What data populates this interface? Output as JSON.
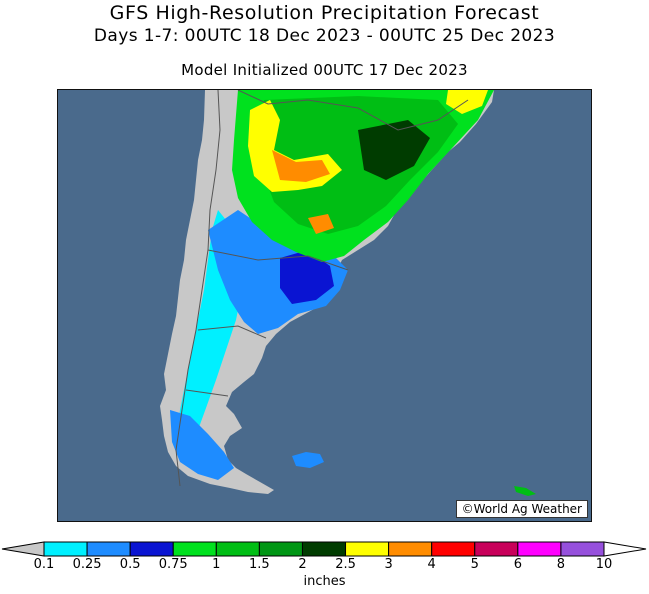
{
  "header": {
    "title": "GFS High-Resolution Precipitation Forecast",
    "period": "Days 1-7: 00UTC 18 Dec 2023 - 00UTC 25 Dec 2023",
    "init": "Model Initialized 00UTC 17 Dec 2023"
  },
  "map": {
    "region": "southern South America",
    "ocean_color": "#4a6a8c",
    "land_color": "#c8c8c8",
    "border_color": "#555555",
    "credit": "©World Ag Weather"
  },
  "legend": {
    "units": "inches",
    "ticks": [
      "0.1",
      "0.25",
      "0.5",
      "0.75",
      "1",
      "1.5",
      "2",
      "2.5",
      "3",
      "4",
      "5",
      "6",
      "8",
      "10"
    ],
    "colors": [
      "#00f0ff",
      "#1e8cff",
      "#0a14d2",
      "#00e11e",
      "#00be14",
      "#009614",
      "#003c00",
      "#ffff00",
      "#ff8c00",
      "#ff0000",
      "#c8005a",
      "#ff00ff",
      "#9650dc"
    ],
    "under_color": "#c8c8c8",
    "over_color": "#ffffff"
  }
}
